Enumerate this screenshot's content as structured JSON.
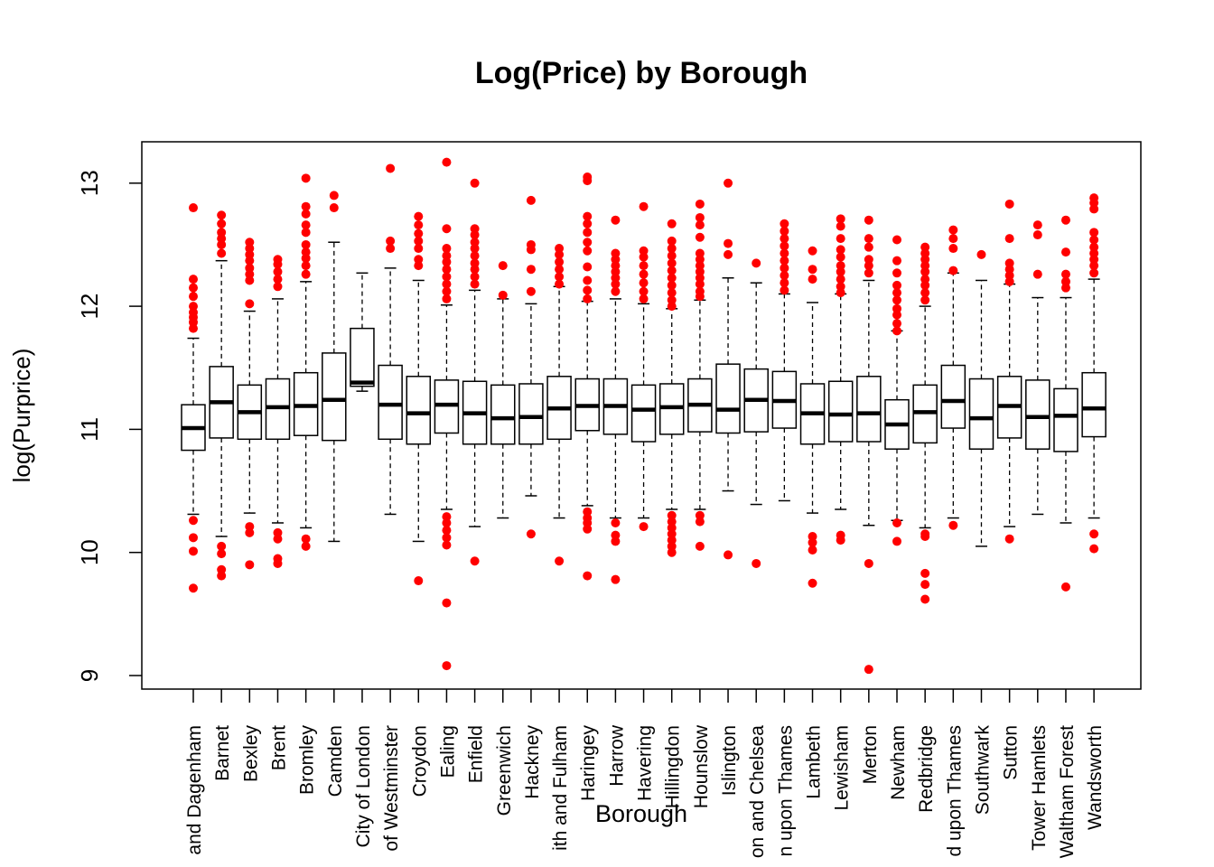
{
  "chart_data": {
    "type": "boxplot",
    "title": "Log(Price) by Borough",
    "xlabel": "Borough",
    "ylabel": "log(Purprice)",
    "ylim": [
      8.9,
      13.3
    ],
    "yticks": [
      "9",
      "10",
      "11",
      "12",
      "13"
    ],
    "grid": false,
    "legend": "none",
    "colors": {
      "box": "#000000",
      "outlier": "#ff0000"
    },
    "categories": [
      "and Dagenham",
      "Barnet",
      "Bexley",
      "Brent",
      "Bromley",
      "Camden",
      "City of London",
      "of Westminster",
      "Croydon",
      "Ealing",
      "Enfield",
      "Greenwich",
      "Hackney",
      "ith and Fulham",
      "Haringey",
      "Harrow",
      "Havering",
      "Hillingdon",
      "Hounslow",
      "Islington",
      "on and Chelsea",
      "n upon Thames",
      "Lambeth",
      "Lewisham",
      "Merton",
      "Newham",
      "Redbridge",
      "d upon Thames",
      "Southwark",
      "Sutton",
      "Tower Hamlets",
      "Waltham Forest",
      "Wandsworth"
    ],
    "boxes": [
      {
        "min": 10.31,
        "q1": 10.83,
        "median": 11.01,
        "q3": 11.2,
        "max": 11.74,
        "outliers": [
          12.8,
          12.22,
          12.15,
          12.08,
          12.0,
          11.95,
          11.91,
          11.87,
          11.82,
          10.26,
          10.12,
          10.01,
          9.71
        ]
      },
      {
        "min": 10.13,
        "q1": 10.93,
        "median": 11.22,
        "q3": 11.51,
        "max": 12.37,
        "outliers": [
          12.74,
          12.67,
          12.6,
          12.55,
          12.5,
          12.43,
          10.05,
          9.99,
          9.86,
          9.81
        ]
      },
      {
        "min": 10.32,
        "q1": 10.92,
        "median": 11.14,
        "q3": 11.36,
        "max": 11.96,
        "outliers": [
          12.52,
          12.47,
          12.42,
          12.37,
          12.31,
          12.26,
          12.21,
          12.02,
          10.21,
          10.16,
          9.9
        ]
      },
      {
        "min": 10.24,
        "q1": 10.92,
        "median": 11.18,
        "q3": 11.41,
        "max": 12.06,
        "outliers": [
          12.38,
          12.34,
          12.28,
          12.22,
          12.16,
          10.16,
          10.11,
          9.95,
          9.91
        ]
      },
      {
        "min": 10.2,
        "q1": 10.95,
        "median": 11.19,
        "q3": 11.46,
        "max": 12.2,
        "outliers": [
          13.04,
          12.81,
          12.75,
          12.66,
          12.6,
          12.5,
          12.44,
          12.39,
          12.33,
          12.26,
          10.11,
          10.05
        ]
      },
      {
        "min": 10.09,
        "q1": 10.91,
        "median": 11.24,
        "q3": 11.62,
        "max": 12.52,
        "outliers": [
          12.9,
          12.8
        ]
      },
      {
        "min": 11.31,
        "q1": 11.35,
        "median": 11.38,
        "q3": 11.82,
        "max": 12.27,
        "outliers": []
      },
      {
        "min": 10.31,
        "q1": 10.92,
        "median": 11.2,
        "q3": 11.52,
        "max": 12.31,
        "outliers": [
          13.12,
          12.53,
          12.47
        ]
      },
      {
        "min": 10.09,
        "q1": 10.88,
        "median": 11.13,
        "q3": 11.43,
        "max": 12.21,
        "outliers": [
          12.73,
          12.66,
          12.59,
          12.53,
          12.47,
          12.38,
          12.33,
          9.77
        ]
      },
      {
        "min": 10.35,
        "q1": 10.97,
        "median": 11.2,
        "q3": 11.4,
        "max": 12.01,
        "outliers": [
          13.17,
          12.63,
          12.47,
          12.41,
          12.36,
          12.3,
          12.24,
          12.18,
          12.12,
          12.06,
          10.29,
          10.24,
          10.18,
          10.12,
          10.06,
          9.59,
          9.08
        ]
      },
      {
        "min": 10.21,
        "q1": 10.88,
        "median": 11.13,
        "q3": 11.39,
        "max": 12.13,
        "outliers": [
          13.0,
          12.63,
          12.58,
          12.52,
          12.47,
          12.41,
          12.35,
          12.3,
          12.24,
          12.18,
          9.93
        ]
      },
      {
        "min": 10.28,
        "q1": 10.88,
        "median": 11.09,
        "q3": 11.36,
        "max": 12.06,
        "outliers": [
          12.33,
          12.09
        ]
      },
      {
        "min": 10.46,
        "q1": 10.88,
        "median": 11.1,
        "q3": 11.37,
        "max": 12.02,
        "outliers": [
          12.86,
          12.5,
          12.46,
          12.3,
          12.12,
          10.15
        ]
      },
      {
        "min": 10.28,
        "q1": 10.92,
        "median": 11.17,
        "q3": 11.43,
        "max": 12.16,
        "outliers": [
          12.47,
          12.42,
          12.36,
          12.3,
          12.24,
          12.18,
          9.93
        ]
      },
      {
        "min": 10.38,
        "q1": 10.99,
        "median": 11.19,
        "q3": 11.41,
        "max": 12.04,
        "outliers": [
          13.05,
          13.02,
          12.73,
          12.67,
          12.6,
          12.52,
          12.45,
          12.32,
          12.21,
          12.13,
          12.06,
          10.33,
          10.28,
          10.24,
          10.19,
          9.81
        ]
      },
      {
        "min": 10.28,
        "q1": 10.96,
        "median": 11.19,
        "q3": 11.41,
        "max": 12.06,
        "outliers": [
          12.7,
          12.43,
          12.38,
          12.33,
          12.28,
          12.23,
          12.18,
          12.12,
          10.24,
          10.14,
          10.09,
          9.78
        ]
      },
      {
        "min": 10.28,
        "q1": 10.9,
        "median": 11.16,
        "q3": 11.36,
        "max": 12.02,
        "outliers": [
          12.81,
          12.45,
          12.4,
          12.33,
          12.26,
          12.19,
          12.12,
          12.06,
          10.21
        ]
      },
      {
        "min": 10.35,
        "q1": 10.96,
        "median": 11.18,
        "q3": 11.37,
        "max": 11.98,
        "outliers": [
          12.67,
          12.53,
          12.47,
          12.41,
          12.35,
          12.29,
          12.23,
          12.17,
          12.11,
          12.05,
          12.0,
          10.3,
          10.25,
          10.2,
          10.15,
          10.1,
          10.05,
          10.0
        ]
      },
      {
        "min": 10.35,
        "q1": 10.98,
        "median": 11.2,
        "q3": 11.41,
        "max": 12.05,
        "outliers": [
          12.83,
          12.72,
          12.66,
          12.56,
          12.43,
          12.38,
          12.33,
          12.28,
          12.23,
          12.18,
          12.12,
          12.08,
          10.3,
          10.25,
          10.05
        ]
      },
      {
        "min": 10.5,
        "q1": 10.97,
        "median": 11.16,
        "q3": 11.53,
        "max": 12.23,
        "outliers": [
          13.0,
          12.51,
          12.42,
          9.98
        ]
      },
      {
        "min": 10.39,
        "q1": 10.98,
        "median": 11.24,
        "q3": 11.49,
        "max": 12.19,
        "outliers": [
          12.35,
          9.91
        ]
      },
      {
        "min": 10.42,
        "q1": 11.01,
        "median": 11.23,
        "q3": 11.47,
        "max": 12.1,
        "outliers": [
          12.67,
          12.61,
          12.55,
          12.49,
          12.43,
          12.37,
          12.31,
          12.25,
          12.19,
          12.13
        ]
      },
      {
        "min": 10.32,
        "q1": 10.88,
        "median": 11.13,
        "q3": 11.37,
        "max": 12.03,
        "outliers": [
          12.45,
          12.3,
          12.22,
          10.13,
          10.08,
          10.02,
          9.75
        ]
      },
      {
        "min": 10.35,
        "q1": 10.9,
        "median": 11.12,
        "q3": 11.39,
        "max": 12.1,
        "outliers": [
          12.71,
          12.65,
          12.55,
          12.46,
          12.4,
          12.33,
          12.28,
          12.22,
          12.16,
          12.11,
          10.14,
          10.1
        ]
      },
      {
        "min": 10.22,
        "q1": 10.9,
        "median": 11.13,
        "q3": 11.43,
        "max": 12.21,
        "outliers": [
          12.7,
          12.55,
          12.48,
          12.38,
          12.33,
          12.27,
          9.91,
          9.05
        ]
      },
      {
        "min": 10.26,
        "q1": 10.84,
        "median": 11.04,
        "q3": 11.24,
        "max": 11.8,
        "outliers": [
          12.54,
          12.37,
          12.27,
          12.17,
          12.11,
          12.05,
          11.98,
          11.93,
          11.86,
          11.8,
          10.24,
          10.09
        ]
      },
      {
        "min": 10.2,
        "q1": 10.89,
        "median": 11.14,
        "q3": 11.36,
        "max": 12.0,
        "outliers": [
          12.48,
          12.43,
          12.38,
          12.33,
          12.28,
          12.22,
          12.17,
          12.11,
          12.05,
          10.15,
          10.13,
          9.83,
          9.74,
          9.62
        ]
      },
      {
        "min": 10.28,
        "q1": 11.01,
        "median": 11.23,
        "q3": 11.52,
        "max": 12.27,
        "outliers": [
          12.62,
          12.55,
          12.47,
          12.29,
          10.22
        ]
      },
      {
        "min": 10.05,
        "q1": 10.84,
        "median": 11.09,
        "q3": 11.41,
        "max": 12.21,
        "outliers": [
          12.42
        ]
      },
      {
        "min": 10.21,
        "q1": 10.93,
        "median": 11.19,
        "q3": 11.43,
        "max": 12.18,
        "outliers": [
          12.83,
          12.55,
          12.35,
          12.3,
          12.25,
          12.2,
          10.11
        ]
      },
      {
        "min": 10.31,
        "q1": 10.84,
        "median": 11.1,
        "q3": 11.4,
        "max": 12.07,
        "outliers": [
          12.66,
          12.58,
          12.26
        ]
      },
      {
        "min": 10.24,
        "q1": 10.82,
        "median": 11.11,
        "q3": 11.33,
        "max": 12.07,
        "outliers": [
          12.7,
          12.44,
          12.26,
          12.2,
          12.15,
          9.72
        ]
      },
      {
        "min": 10.28,
        "q1": 10.94,
        "median": 11.17,
        "q3": 11.46,
        "max": 12.22,
        "outliers": [
          12.88,
          12.84,
          12.79,
          12.6,
          12.54,
          12.48,
          12.43,
          12.38,
          12.33,
          12.27,
          10.15,
          10.03
        ]
      }
    ]
  }
}
